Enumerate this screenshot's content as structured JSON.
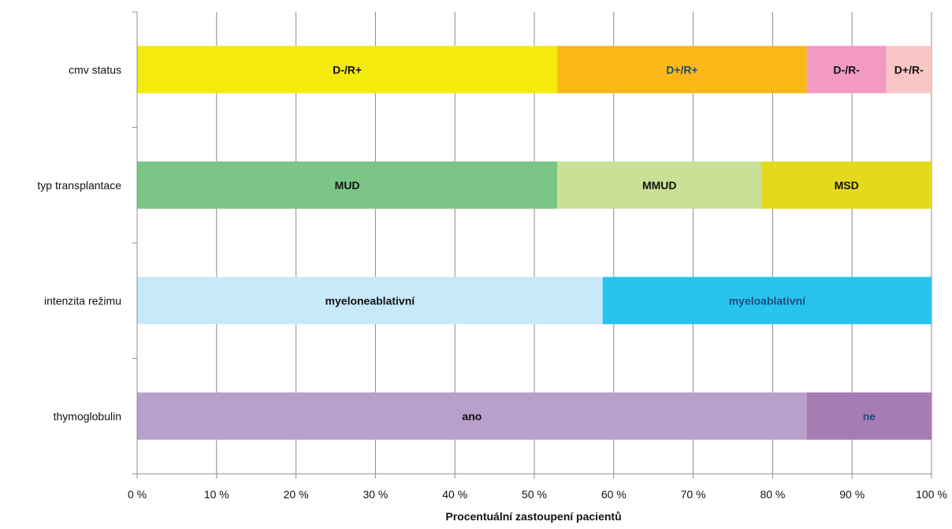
{
  "chart_data": {
    "type": "bar",
    "orientation": "horizontal",
    "stacked": true,
    "title": "",
    "xlabel": "Procentuální zastoupení pacientů",
    "ylabel": "",
    "xlim": [
      0,
      100
    ],
    "x_ticks": [
      0,
      10,
      20,
      30,
      40,
      50,
      60,
      70,
      80,
      90,
      100
    ],
    "x_tick_labels": [
      "0 %",
      "10 %",
      "20 %",
      "30 %",
      "40 %",
      "50 %",
      "60 %",
      "70 %",
      "80 %",
      "90 %",
      "100 %"
    ],
    "grid": true,
    "legend": "none",
    "categories": [
      "cmv status",
      "typ transplantace",
      "intenzita režimu",
      "thymoglobulin"
    ],
    "bars": [
      {
        "category": "cmv status",
        "segments": [
          {
            "label": "D-/R+",
            "value": 52.9,
            "color": "#f4ea0b",
            "label_color": "#111111"
          },
          {
            "label": "D+/R+",
            "value": 31.4,
            "color": "#f9b817",
            "label_color": "#1f4e79"
          },
          {
            "label": "D-/R-",
            "value": 10.0,
            "color": "#f29ac4",
            "label_color": "#111111"
          },
          {
            "label": "D+/R-",
            "value": 5.7,
            "color": "#f9c6c6",
            "label_color": "#111111"
          }
        ]
      },
      {
        "category": "typ transplantace",
        "segments": [
          {
            "label": "MUD",
            "value": 52.9,
            "color": "#7bc686",
            "label_color": "#111111"
          },
          {
            "label": "MMUD",
            "value": 25.7,
            "color": "#cae096",
            "label_color": "#111111"
          },
          {
            "label": "MSD",
            "value": 21.4,
            "color": "#e4da1d",
            "label_color": "#111111"
          }
        ]
      },
      {
        "category": "intenzita režimu",
        "segments": [
          {
            "label": "myeloneablativní",
            "value": 58.6,
            "color": "#c8e9f9",
            "label_color": "#111111"
          },
          {
            "label": "myeloablativní",
            "value": 41.4,
            "color": "#29c3f0",
            "label_color": "#1f4e79"
          }
        ]
      },
      {
        "category": "thymoglobulin",
        "segments": [
          {
            "label": "ano",
            "value": 84.3,
            "color": "#b99fcb",
            "label_color": "#111111"
          },
          {
            "label": "ne",
            "value": 15.7,
            "color": "#a77cb5",
            "label_color": "#1f4e79"
          }
        ]
      }
    ]
  },
  "colors": {
    "gridline": "#8c8c8c",
    "axis": "#8c8c8c",
    "text": "#111111"
  }
}
